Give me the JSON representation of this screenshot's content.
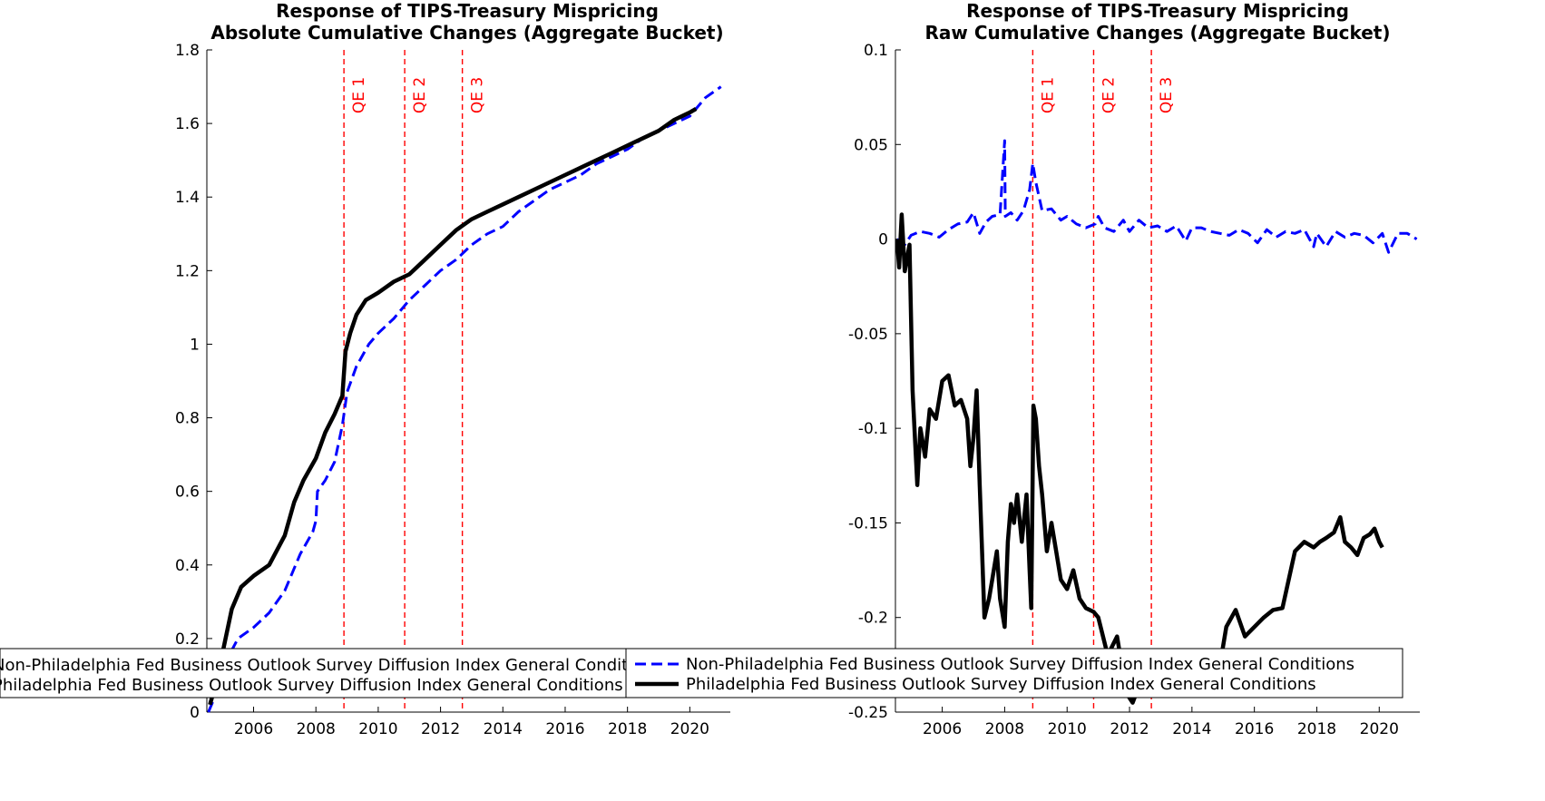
{
  "chart_data": [
    {
      "type": "line",
      "title": "Response of TIPS-Treasury Mispricing",
      "subtitle": "Absolute Cumulative Changes (Aggregate Bucket)",
      "xlabel": "",
      "ylabel": "",
      "xlim": [
        2004.5,
        2021.3
      ],
      "ylim": [
        0,
        1.8
      ],
      "x_ticks": [
        "2006",
        "2008",
        "2010",
        "2012",
        "2014",
        "2016",
        "2018",
        "2020"
      ],
      "y_ticks": [
        "0",
        "0.2",
        "0.4",
        "0.6",
        "0.8",
        "1",
        "1.2",
        "1.4",
        "1.6",
        "1.8"
      ],
      "grid": false,
      "vlines": [
        {
          "x": 2008.9,
          "label": "QE 1"
        },
        {
          "x": 2010.85,
          "label": "QE 2"
        },
        {
          "x": 2012.7,
          "label": "QE 3"
        }
      ],
      "series": [
        {
          "name": "Non-Philadelphia Fed Business Outlook Survey Diffusion Index General Conditions",
          "style": "dashed",
          "color": "#0000ff",
          "points": [
            [
              2004.55,
              0.0
            ],
            [
              2004.7,
              0.03
            ],
            [
              2005.0,
              0.12
            ],
            [
              2005.5,
              0.2
            ],
            [
              2006.0,
              0.23
            ],
            [
              2006.5,
              0.27
            ],
            [
              2007.0,
              0.33
            ],
            [
              2007.5,
              0.43
            ],
            [
              2007.9,
              0.49
            ],
            [
              2008.0,
              0.52
            ],
            [
              2008.05,
              0.6
            ],
            [
              2008.3,
              0.63
            ],
            [
              2008.6,
              0.68
            ],
            [
              2008.85,
              0.78
            ],
            [
              2009.0,
              0.87
            ],
            [
              2009.3,
              0.94
            ],
            [
              2009.7,
              1.0
            ],
            [
              2010.0,
              1.03
            ],
            [
              2010.5,
              1.07
            ],
            [
              2011.0,
              1.12
            ],
            [
              2011.5,
              1.16
            ],
            [
              2012.0,
              1.2
            ],
            [
              2012.5,
              1.23
            ],
            [
              2013.0,
              1.27
            ],
            [
              2013.5,
              1.3
            ],
            [
              2014.0,
              1.32
            ],
            [
              2014.5,
              1.36
            ],
            [
              2015.0,
              1.39
            ],
            [
              2015.5,
              1.42
            ],
            [
              2016.0,
              1.44
            ],
            [
              2016.5,
              1.46
            ],
            [
              2017.0,
              1.49
            ],
            [
              2017.5,
              1.51
            ],
            [
              2018.0,
              1.53
            ],
            [
              2018.5,
              1.56
            ],
            [
              2019.0,
              1.58
            ],
            [
              2019.5,
              1.6
            ],
            [
              2020.0,
              1.62
            ],
            [
              2020.5,
              1.67
            ],
            [
              2021.0,
              1.7
            ]
          ]
        },
        {
          "name": "Philadelphia Fed Business Outlook Survey Diffusion Index General Conditions",
          "style": "solid",
          "color": "#000000",
          "points": [
            [
              2004.6,
              0.02
            ],
            [
              2004.8,
              0.08
            ],
            [
              2005.0,
              0.16
            ],
            [
              2005.3,
              0.28
            ],
            [
              2005.6,
              0.34
            ],
            [
              2006.0,
              0.37
            ],
            [
              2006.5,
              0.4
            ],
            [
              2007.0,
              0.48
            ],
            [
              2007.3,
              0.57
            ],
            [
              2007.6,
              0.63
            ],
            [
              2008.0,
              0.69
            ],
            [
              2008.3,
              0.76
            ],
            [
              2008.6,
              0.81
            ],
            [
              2008.85,
              0.86
            ],
            [
              2008.95,
              0.98
            ],
            [
              2009.1,
              1.03
            ],
            [
              2009.3,
              1.08
            ],
            [
              2009.6,
              1.12
            ],
            [
              2010.0,
              1.14
            ],
            [
              2010.5,
              1.17
            ],
            [
              2011.0,
              1.19
            ],
            [
              2011.5,
              1.23
            ],
            [
              2012.0,
              1.27
            ],
            [
              2012.5,
              1.31
            ],
            [
              2013.0,
              1.34
            ],
            [
              2013.5,
              1.36
            ],
            [
              2014.0,
              1.38
            ],
            [
              2014.5,
              1.4
            ],
            [
              2015.0,
              1.42
            ],
            [
              2015.5,
              1.44
            ],
            [
              2016.0,
              1.46
            ],
            [
              2016.5,
              1.48
            ],
            [
              2017.0,
              1.5
            ],
            [
              2017.5,
              1.52
            ],
            [
              2018.0,
              1.54
            ],
            [
              2018.5,
              1.56
            ],
            [
              2019.0,
              1.58
            ],
            [
              2019.5,
              1.61
            ],
            [
              2020.0,
              1.63
            ],
            [
              2020.2,
              1.64
            ]
          ]
        }
      ],
      "legend": {
        "placement": "bottom",
        "entries": [
          "Non-Philadelphia Fed Business Outlook Survey Diffusion Index General Conditions",
          "Philadelphia Fed Business Outlook Survey Diffusion Index General Conditions"
        ]
      }
    },
    {
      "type": "line",
      "title": "Response of TIPS-Treasury Mispricing",
      "subtitle": "Raw Cumulative Changes (Aggregate Bucket)",
      "xlabel": "",
      "ylabel": "",
      "xlim": [
        2004.5,
        2021.3
      ],
      "ylim": [
        -0.25,
        0.1
      ],
      "x_ticks": [
        "2006",
        "2008",
        "2010",
        "2012",
        "2014",
        "2016",
        "2018",
        "2020"
      ],
      "y_ticks": [
        "-0.25",
        "-0.2",
        "-0.15",
        "-0.1",
        "-0.05",
        "0",
        "0.05",
        "0.1"
      ],
      "grid": false,
      "vlines": [
        {
          "x": 2008.9,
          "label": "QE 1"
        },
        {
          "x": 2010.85,
          "label": "QE 2"
        },
        {
          "x": 2012.7,
          "label": "QE 3"
        }
      ],
      "series": [
        {
          "name": "Non-Philadelphia Fed Business Outlook Survey Diffusion Index General Conditions",
          "style": "dashed",
          "color": "#0000ff",
          "points": [
            [
              2004.55,
              0.0
            ],
            [
              2004.8,
              -0.003
            ],
            [
              2005.0,
              0.002
            ],
            [
              2005.3,
              0.004
            ],
            [
              2005.6,
              0.003
            ],
            [
              2005.9,
              0.001
            ],
            [
              2006.2,
              0.005
            ],
            [
              2006.5,
              0.008
            ],
            [
              2006.8,
              0.009
            ],
            [
              2007.0,
              0.014
            ],
            [
              2007.2,
              0.003
            ],
            [
              2007.4,
              0.009
            ],
            [
              2007.6,
              0.012
            ],
            [
              2007.85,
              0.013
            ],
            [
              2008.0,
              0.052
            ],
            [
              2008.02,
              0.012
            ],
            [
              2008.2,
              0.014
            ],
            [
              2008.4,
              0.01
            ],
            [
              2008.6,
              0.015
            ],
            [
              2008.8,
              0.026
            ],
            [
              2008.9,
              0.04
            ],
            [
              2009.0,
              0.03
            ],
            [
              2009.2,
              0.015
            ],
            [
              2009.5,
              0.016
            ],
            [
              2009.8,
              0.01
            ],
            [
              2010.0,
              0.012
            ],
            [
              2010.3,
              0.008
            ],
            [
              2010.6,
              0.006
            ],
            [
              2010.9,
              0.008
            ],
            [
              2011.0,
              0.012
            ],
            [
              2011.2,
              0.006
            ],
            [
              2011.5,
              0.004
            ],
            [
              2011.8,
              0.01
            ],
            [
              2012.0,
              0.004
            ],
            [
              2012.3,
              0.01
            ],
            [
              2012.6,
              0.006
            ],
            [
              2012.9,
              0.007
            ],
            [
              2013.2,
              0.004
            ],
            [
              2013.5,
              0.007
            ],
            [
              2013.8,
              -0.001
            ],
            [
              2014.0,
              0.006
            ],
            [
              2014.3,
              0.006
            ],
            [
              2014.6,
              0.004
            ],
            [
              2014.9,
              0.003
            ],
            [
              2015.2,
              0.002
            ],
            [
              2015.5,
              0.005
            ],
            [
              2015.8,
              0.003
            ],
            [
              2016.1,
              -0.002
            ],
            [
              2016.4,
              0.005
            ],
            [
              2016.7,
              0.001
            ],
            [
              2017.0,
              0.004
            ],
            [
              2017.3,
              0.003
            ],
            [
              2017.6,
              0.005
            ],
            [
              2017.9,
              -0.004
            ],
            [
              2018.0,
              0.003
            ],
            [
              2018.3,
              -0.004
            ],
            [
              2018.6,
              0.004
            ],
            [
              2018.9,
              0.001
            ],
            [
              2019.2,
              0.003
            ],
            [
              2019.5,
              0.002
            ],
            [
              2019.8,
              -0.002
            ],
            [
              2020.1,
              0.003
            ],
            [
              2020.3,
              -0.007
            ],
            [
              2020.6,
              0.003
            ],
            [
              2020.9,
              0.003
            ],
            [
              2021.2,
              0.0
            ]
          ]
        },
        {
          "name": "Philadelphia Fed Business Outlook Survey Diffusion Index General Conditions",
          "style": "solid",
          "color": "#000000",
          "points": [
            [
              2004.55,
              0.0
            ],
            [
              2004.62,
              -0.015
            ],
            [
              2004.7,
              0.013
            ],
            [
              2004.8,
              -0.017
            ],
            [
              2004.95,
              -0.003
            ],
            [
              2005.05,
              -0.08
            ],
            [
              2005.2,
              -0.13
            ],
            [
              2005.3,
              -0.1
            ],
            [
              2005.45,
              -0.115
            ],
            [
              2005.6,
              -0.09
            ],
            [
              2005.8,
              -0.095
            ],
            [
              2006.0,
              -0.075
            ],
            [
              2006.2,
              -0.072
            ],
            [
              2006.4,
              -0.088
            ],
            [
              2006.6,
              -0.085
            ],
            [
              2006.8,
              -0.095
            ],
            [
              2006.9,
              -0.12
            ],
            [
              2007.0,
              -0.105
            ],
            [
              2007.1,
              -0.08
            ],
            [
              2007.2,
              -0.13
            ],
            [
              2007.35,
              -0.2
            ],
            [
              2007.5,
              -0.19
            ],
            [
              2007.6,
              -0.18
            ],
            [
              2007.75,
              -0.165
            ],
            [
              2007.85,
              -0.19
            ],
            [
              2008.0,
              -0.205
            ],
            [
              2008.1,
              -0.16
            ],
            [
              2008.2,
              -0.14
            ],
            [
              2008.3,
              -0.15
            ],
            [
              2008.4,
              -0.135
            ],
            [
              2008.55,
              -0.16
            ],
            [
              2008.7,
              -0.135
            ],
            [
              2008.8,
              -0.175
            ],
            [
              2008.85,
              -0.195
            ],
            [
              2008.92,
              -0.088
            ],
            [
              2009.0,
              -0.095
            ],
            [
              2009.1,
              -0.12
            ],
            [
              2009.2,
              -0.135
            ],
            [
              2009.35,
              -0.165
            ],
            [
              2009.5,
              -0.15
            ],
            [
              2009.65,
              -0.165
            ],
            [
              2009.8,
              -0.18
            ],
            [
              2010.0,
              -0.185
            ],
            [
              2010.2,
              -0.175
            ],
            [
              2010.4,
              -0.19
            ],
            [
              2010.6,
              -0.195
            ],
            [
              2010.85,
              -0.197
            ],
            [
              2011.0,
              -0.2
            ],
            [
              2011.3,
              -0.22
            ],
            [
              2011.6,
              -0.21
            ],
            [
              2011.9,
              -0.24
            ],
            [
              2012.1,
              -0.245
            ],
            [
              2012.4,
              -0.232
            ],
            [
              2012.7,
              -0.236
            ],
            [
              2013.0,
              -0.235
            ],
            [
              2013.4,
              -0.225
            ],
            [
              2013.8,
              -0.236
            ],
            [
              2014.2,
              -0.232
            ],
            [
              2014.6,
              -0.232
            ],
            [
              2014.95,
              -0.22
            ],
            [
              2015.1,
              -0.205
            ],
            [
              2015.4,
              -0.196
            ],
            [
              2015.7,
              -0.21
            ],
            [
              2016.0,
              -0.205
            ],
            [
              2016.3,
              -0.2
            ],
            [
              2016.6,
              -0.196
            ],
            [
              2016.9,
              -0.195
            ],
            [
              2017.1,
              -0.18
            ],
            [
              2017.3,
              -0.165
            ],
            [
              2017.6,
              -0.16
            ],
            [
              2017.9,
              -0.163
            ],
            [
              2018.1,
              -0.16
            ],
            [
              2018.3,
              -0.158
            ],
            [
              2018.55,
              -0.155
            ],
            [
              2018.75,
              -0.147
            ],
            [
              2018.9,
              -0.16
            ],
            [
              2019.1,
              -0.163
            ],
            [
              2019.3,
              -0.167
            ],
            [
              2019.5,
              -0.158
            ],
            [
              2019.7,
              -0.156
            ],
            [
              2019.85,
              -0.153
            ],
            [
              2020.0,
              -0.16
            ],
            [
              2020.1,
              -0.163
            ]
          ]
        }
      ],
      "legend": {
        "placement": "bottom",
        "entries": [
          "Non-Philadelphia Fed Business Outlook Survey Diffusion Index General Conditions",
          "Philadelphia Fed Business Outlook Survey Diffusion Index General Conditions"
        ]
      }
    }
  ],
  "colors": {
    "qe_line": "#ff0000",
    "series_dashed": "#0000ff",
    "series_solid": "#000000"
  }
}
